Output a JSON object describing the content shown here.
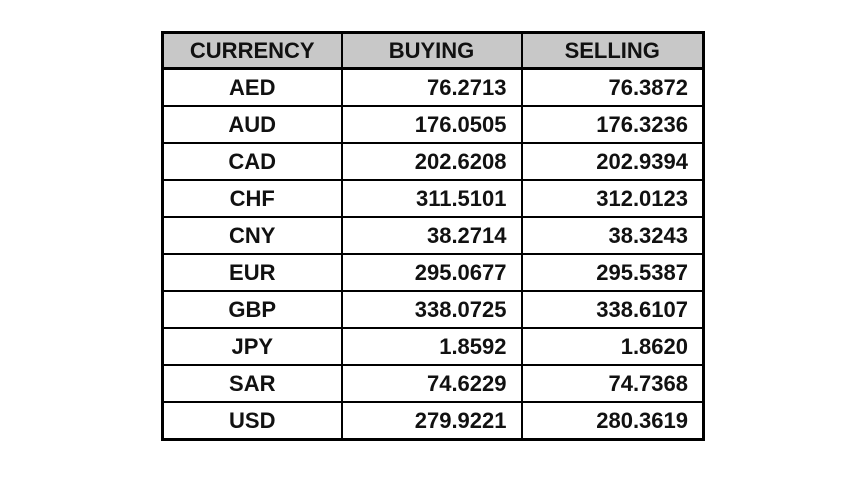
{
  "table": {
    "headers": [
      "CURRENCY",
      "BUYING",
      "SELLING"
    ],
    "rows": [
      {
        "currency": "AED",
        "buying": "76.2713",
        "selling": "76.3872"
      },
      {
        "currency": "AUD",
        "buying": "176.0505",
        "selling": "176.3236"
      },
      {
        "currency": "CAD",
        "buying": "202.6208",
        "selling": "202.9394"
      },
      {
        "currency": "CHF",
        "buying": "311.5101",
        "selling": "312.0123"
      },
      {
        "currency": "CNY",
        "buying": "38.2714",
        "selling": "38.3243"
      },
      {
        "currency": "EUR",
        "buying": "295.0677",
        "selling": "295.5387"
      },
      {
        "currency": "GBP",
        "buying": "338.0725",
        "selling": "338.6107"
      },
      {
        "currency": "JPY",
        "buying": "1.8592",
        "selling": "1.8620"
      },
      {
        "currency": "SAR",
        "buying": "74.6229",
        "selling": "74.7368"
      },
      {
        "currency": "USD",
        "buying": "279.9221",
        "selling": "280.3619"
      }
    ]
  },
  "colors": {
    "header_background": "#c8c8c8",
    "border": "#000000",
    "text": "#111111",
    "page_background": "#ffffff"
  }
}
